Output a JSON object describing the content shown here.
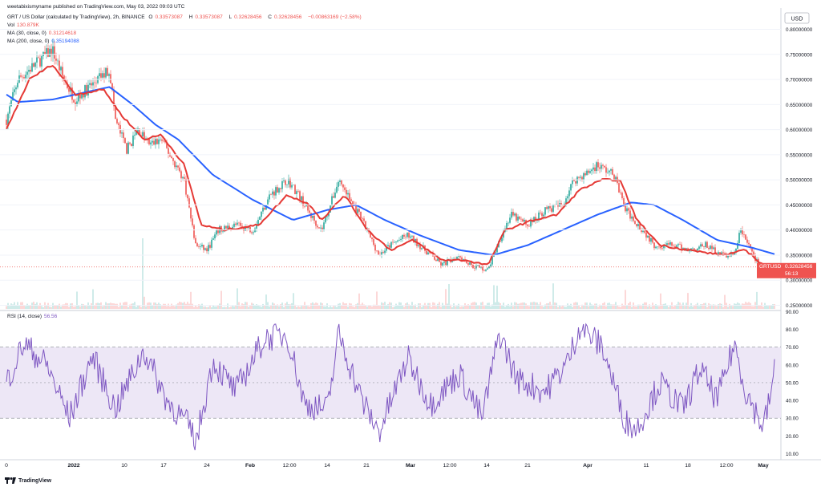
{
  "attribution": "weetabixismyname published on TradingView.com, May 03, 2022 09:03 UTC",
  "legend": {
    "symbol": "GRT / US Dollar (calculated by TradingView), 2h, BINANCE",
    "o_label": "O",
    "o_value": "0.33573087",
    "h_label": "H",
    "h_value": "0.33573087",
    "l_label": "L",
    "l_value": "0.32628456",
    "c_label": "C",
    "c_value": "0.32628456",
    "change": "−0.00863169 (−2.58%)",
    "vol_label": "Vol",
    "vol_value": "130.879K",
    "ma30_label": "MA (30, close, 0)",
    "ma30_value": "0.31214618",
    "ma200_label": "MA (200, close, 0)",
    "ma200_value": "0.35194088",
    "rsi_label": "RSI (14, close)",
    "rsi_value": "56.56"
  },
  "currency": "USD",
  "price_tag": {
    "symbol": "GRTUSD",
    "price": "0.32628456",
    "countdown": "56:13"
  },
  "footer": {
    "brand": "TradingView"
  },
  "colors": {
    "up": "#26a69a",
    "down": "#ef5350",
    "ma30": "#e53935",
    "ma200": "#2962ff",
    "rsi": "#7e57c2",
    "rsi_band": "#ede7f6"
  },
  "chart_data": [
    {
      "type": "candlestick",
      "title": "GRT / US Dollar (calculated by TradingView), 2h, BINANCE",
      "ylim": [
        0.25,
        0.82
      ],
      "y_ticks": [
        "0.80000000",
        "0.75000000",
        "0.70000000",
        "0.65000000",
        "0.60000000",
        "0.55000000",
        "0.50000000",
        "0.45000000",
        "0.40000000",
        "0.35000000",
        "0.30000000",
        "0.25000000"
      ],
      "x_ticks": [
        "0",
        "2022",
        "10",
        "17",
        "24",
        "Feb",
        "12:00",
        "14",
        "21",
        "Mar",
        "12:00",
        "14",
        "21",
        "Apr",
        "11",
        "18",
        "12:00",
        "May"
      ],
      "price_anchors": [
        {
          "x": "Dec 20",
          "y": 0.62
        },
        {
          "x": "Dec 22",
          "y": 0.7
        },
        {
          "x": "Dec 25",
          "y": 0.73
        },
        {
          "x": "Dec 28",
          "y": 0.76
        },
        {
          "x": "Dec 30",
          "y": 0.7
        },
        {
          "x": "Jan 1",
          "y": 0.66
        },
        {
          "x": "Jan 3",
          "y": 0.68
        },
        {
          "x": "Jan 5",
          "y": 0.7
        },
        {
          "x": "Jan 7",
          "y": 0.72
        },
        {
          "x": "Jan 8",
          "y": 0.62
        },
        {
          "x": "Jan 10",
          "y": 0.56
        },
        {
          "x": "Jan 12",
          "y": 0.6
        },
        {
          "x": "Jan 14",
          "y": 0.57
        },
        {
          "x": "Jan 16",
          "y": 0.58
        },
        {
          "x": "Jan 18",
          "y": 0.54
        },
        {
          "x": "Jan 20",
          "y": 0.5
        },
        {
          "x": "Jan 22",
          "y": 0.37
        },
        {
          "x": "Jan 24",
          "y": 0.36
        },
        {
          "x": "Jan 26",
          "y": 0.4
        },
        {
          "x": "Jan 29",
          "y": 0.41
        },
        {
          "x": "Feb 1",
          "y": 0.4
        },
        {
          "x": "Feb 4",
          "y": 0.47
        },
        {
          "x": "Feb 7",
          "y": 0.5
        },
        {
          "x": "Feb 9",
          "y": 0.47
        },
        {
          "x": "Feb 11",
          "y": 0.43
        },
        {
          "x": "Feb 13",
          "y": 0.4
        },
        {
          "x": "Feb 16",
          "y": 0.5
        },
        {
          "x": "Feb 18",
          "y": 0.46
        },
        {
          "x": "Feb 20",
          "y": 0.42
        },
        {
          "x": "Feb 23",
          "y": 0.35
        },
        {
          "x": "Feb 25",
          "y": 0.37
        },
        {
          "x": "Feb 28",
          "y": 0.39
        },
        {
          "x": "Mar 3",
          "y": 0.36
        },
        {
          "x": "Mar 6",
          "y": 0.33
        },
        {
          "x": "Mar 9",
          "y": 0.35
        },
        {
          "x": "Mar 11",
          "y": 0.33
        },
        {
          "x": "Mar 14",
          "y": 0.32
        },
        {
          "x": "Mar 16",
          "y": 0.38
        },
        {
          "x": "Mar 18",
          "y": 0.43
        },
        {
          "x": "Mar 21",
          "y": 0.41
        },
        {
          "x": "Mar 24",
          "y": 0.44
        },
        {
          "x": "Mar 27",
          "y": 0.45
        },
        {
          "x": "Mar 29",
          "y": 0.5
        },
        {
          "x": "Mar 31",
          "y": 0.51
        },
        {
          "x": "Apr 2",
          "y": 0.53
        },
        {
          "x": "Apr 5",
          "y": 0.51
        },
        {
          "x": "Apr 7",
          "y": 0.44
        },
        {
          "x": "Apr 10",
          "y": 0.4
        },
        {
          "x": "Apr 12",
          "y": 0.37
        },
        {
          "x": "Apr 15",
          "y": 0.37
        },
        {
          "x": "Apr 18",
          "y": 0.36
        },
        {
          "x": "Apr 21",
          "y": 0.37
        },
        {
          "x": "Apr 24",
          "y": 0.35
        },
        {
          "x": "Apr 26",
          "y": 0.35
        },
        {
          "x": "Apr 27",
          "y": 0.4
        },
        {
          "x": "Apr 29",
          "y": 0.36
        },
        {
          "x": "May 1",
          "y": 0.31
        },
        {
          "x": "May 3",
          "y": 0.326
        }
      ],
      "ma30_anchors": [
        {
          "x": "Dec 20",
          "y": 0.6
        },
        {
          "x": "Dec 24",
          "y": 0.7
        },
        {
          "x": "Dec 28",
          "y": 0.73
        },
        {
          "x": "Jan 1",
          "y": 0.67
        },
        {
          "x": "Jan 6",
          "y": 0.68
        },
        {
          "x": "Jan 9",
          "y": 0.63
        },
        {
          "x": "Jan 13",
          "y": 0.58
        },
        {
          "x": "Jan 16",
          "y": 0.59
        },
        {
          "x": "Jan 20",
          "y": 0.53
        },
        {
          "x": "Jan 23",
          "y": 0.41
        },
        {
          "x": "Jan 27",
          "y": 0.4
        },
        {
          "x": "Feb 2",
          "y": 0.41
        },
        {
          "x": "Feb 7",
          "y": 0.47
        },
        {
          "x": "Feb 11",
          "y": 0.45
        },
        {
          "x": "Feb 13",
          "y": 0.42
        },
        {
          "x": "Feb 17",
          "y": 0.47
        },
        {
          "x": "Feb 21",
          "y": 0.4
        },
        {
          "x": "Feb 25",
          "y": 0.36
        },
        {
          "x": "Mar 1",
          "y": 0.38
        },
        {
          "x": "Mar 6",
          "y": 0.34
        },
        {
          "x": "Mar 10",
          "y": 0.34
        },
        {
          "x": "Mar 14",
          "y": 0.33
        },
        {
          "x": "Mar 17",
          "y": 0.4
        },
        {
          "x": "Mar 22",
          "y": 0.42
        },
        {
          "x": "Mar 26",
          "y": 0.43
        },
        {
          "x": "Mar 30",
          "y": 0.48
        },
        {
          "x": "Apr 3",
          "y": 0.5
        },
        {
          "x": "Apr 6",
          "y": 0.5
        },
        {
          "x": "Apr 9",
          "y": 0.42
        },
        {
          "x": "Apr 13",
          "y": 0.37
        },
        {
          "x": "Apr 18",
          "y": 0.36
        },
        {
          "x": "Apr 24",
          "y": 0.35
        },
        {
          "x": "Apr 28",
          "y": 0.36
        },
        {
          "x": "May 3",
          "y": 0.31
        }
      ],
      "ma200_anchors": [
        {
          "x": "Dec 20",
          "y": 0.67
        },
        {
          "x": "Dec 22",
          "y": 0.655
        },
        {
          "x": "Dec 28",
          "y": 0.66
        },
        {
          "x": "Jan 3",
          "y": 0.675
        },
        {
          "x": "Jan 7",
          "y": 0.685
        },
        {
          "x": "Jan 11",
          "y": 0.65
        },
        {
          "x": "Jan 15",
          "y": 0.61
        },
        {
          "x": "Jan 19",
          "y": 0.58
        },
        {
          "x": "Jan 25",
          "y": 0.51
        },
        {
          "x": "Feb 1",
          "y": 0.46
        },
        {
          "x": "Feb 8",
          "y": 0.42
        },
        {
          "x": "Feb 14",
          "y": 0.44
        },
        {
          "x": "Feb 19",
          "y": 0.45
        },
        {
          "x": "Feb 24",
          "y": 0.42
        },
        {
          "x": "Mar 2",
          "y": 0.39
        },
        {
          "x": "Mar 9",
          "y": 0.36
        },
        {
          "x": "Mar 15",
          "y": 0.35
        },
        {
          "x": "Mar 21",
          "y": 0.37
        },
        {
          "x": "Mar 27",
          "y": 0.4
        },
        {
          "x": "Apr 2",
          "y": 0.43
        },
        {
          "x": "Apr 8",
          "y": 0.455
        },
        {
          "x": "Apr 12",
          "y": 0.45
        },
        {
          "x": "Apr 17",
          "y": 0.42
        },
        {
          "x": "Apr 23",
          "y": 0.38
        },
        {
          "x": "Apr 29",
          "y": 0.365
        },
        {
          "x": "May 3",
          "y": 0.352
        }
      ],
      "current_price": 0.32628456
    },
    {
      "type": "line",
      "title": "RSI (14, close)",
      "ylim": [
        5,
        88
      ],
      "y_ticks": [
        "90.00",
        "80.00",
        "70.00",
        "60.00",
        "50.00",
        "40.00",
        "30.00",
        "20.00",
        "10.00"
      ],
      "band": [
        30,
        70
      ],
      "levels": [
        30,
        50,
        70
      ],
      "anchors": [
        {
          "x": "Dec 20",
          "y": 50
        },
        {
          "x": "Dec 23",
          "y": 72
        },
        {
          "x": "Dec 27",
          "y": 60
        },
        {
          "x": "Dec 31",
          "y": 30
        },
        {
          "x": "Jan 4",
          "y": 65
        },
        {
          "x": "Jan 8",
          "y": 35
        },
        {
          "x": "Jan 13",
          "y": 68
        },
        {
          "x": "Jan 17",
          "y": 40
        },
        {
          "x": "Jan 21",
          "y": 25
        },
        {
          "x": "Jan 22",
          "y": 15
        },
        {
          "x": "Jan 25",
          "y": 62
        },
        {
          "x": "Jan 29",
          "y": 45
        },
        {
          "x": "Feb 3",
          "y": 75
        },
        {
          "x": "Feb 7",
          "y": 77
        },
        {
          "x": "Feb 10",
          "y": 38
        },
        {
          "x": "Feb 14",
          "y": 35
        },
        {
          "x": "Feb 16",
          "y": 78
        },
        {
          "x": "Feb 20",
          "y": 40
        },
        {
          "x": "Feb 23",
          "y": 22
        },
        {
          "x": "Feb 28",
          "y": 64
        },
        {
          "x": "Mar 4",
          "y": 38
        },
        {
          "x": "Mar 9",
          "y": 55
        },
        {
          "x": "Mar 13",
          "y": 30
        },
        {
          "x": "Mar 16",
          "y": 78
        },
        {
          "x": "Mar 19",
          "y": 52
        },
        {
          "x": "Mar 24",
          "y": 45
        },
        {
          "x": "Mar 28",
          "y": 62
        },
        {
          "x": "Mar 30",
          "y": 82
        },
        {
          "x": "Apr 3",
          "y": 70
        },
        {
          "x": "Apr 7",
          "y": 28
        },
        {
          "x": "Apr 9",
          "y": 24
        },
        {
          "x": "Apr 13",
          "y": 50
        },
        {
          "x": "Apr 17",
          "y": 35
        },
        {
          "x": "Apr 20",
          "y": 58
        },
        {
          "x": "Apr 23",
          "y": 40
        },
        {
          "x": "Apr 26",
          "y": 72
        },
        {
          "x": "Apr 28",
          "y": 45
        },
        {
          "x": "May 1",
          "y": 25
        },
        {
          "x": "May 2",
          "y": 38
        },
        {
          "x": "May 3",
          "y": 56.56
        }
      ]
    }
  ]
}
